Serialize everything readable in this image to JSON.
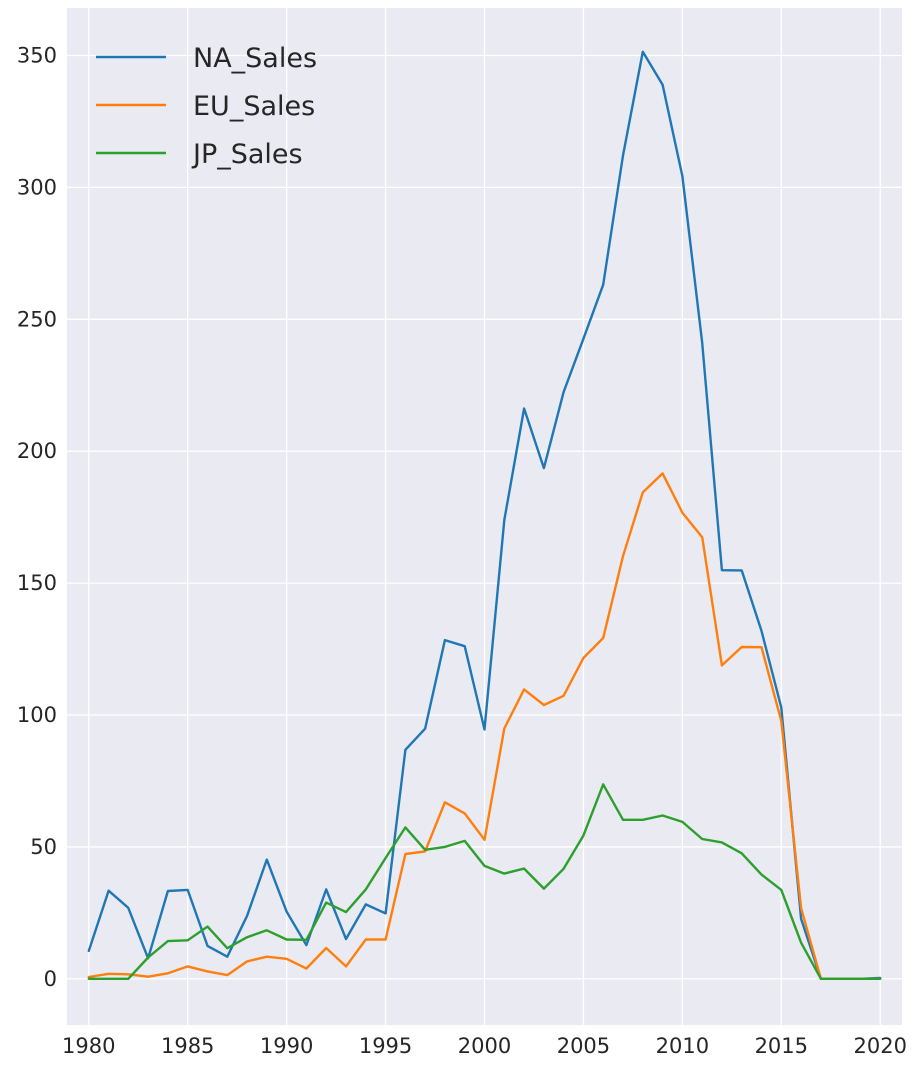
{
  "chart_data": {
    "type": "line",
    "title": "",
    "xlabel": "",
    "ylabel": "",
    "xlim": [
      1978.9,
      2021.1
    ],
    "ylim": [
      -17.5,
      368
    ],
    "xticks": [
      1980,
      1985,
      1990,
      1995,
      2000,
      2005,
      2010,
      2015,
      2020
    ],
    "yticks": [
      0,
      50,
      100,
      150,
      200,
      250,
      300,
      350
    ],
    "grid": true,
    "legend_position": "top-left",
    "x": [
      1980,
      1981,
      1982,
      1983,
      1984,
      1985,
      1986,
      1987,
      1988,
      1989,
      1990,
      1991,
      1992,
      1993,
      1994,
      1995,
      1996,
      1997,
      1998,
      1999,
      2000,
      2001,
      2002,
      2003,
      2004,
      2005,
      2006,
      2007,
      2008,
      2009,
      2010,
      2011,
      2012,
      2013,
      2014,
      2015,
      2016,
      2017,
      2018,
      2019,
      2020
    ],
    "series": [
      {
        "name": "NA_Sales",
        "color": "#1f77b4",
        "values": [
          10.6,
          33.4,
          26.9,
          7.8,
          33.3,
          33.7,
          12.5,
          8.4,
          23.9,
          45.2,
          25.5,
          12.8,
          33.9,
          15.1,
          28.2,
          24.8,
          86.8,
          94.8,
          128.4,
          126.1,
          94.5,
          173.9,
          216.2,
          193.6,
          222.4,
          242.6,
          263.1,
          312.1,
          351.4,
          338.9,
          304.2,
          241.1,
          154.9,
          154.8,
          131.9,
          102.8,
          22.7,
          0.0,
          0.0,
          0.0,
          0.3
        ]
      },
      {
        "name": "EU_Sales",
        "color": "#ff7f0e",
        "values": [
          0.7,
          1.9,
          1.7,
          0.8,
          2.1,
          4.7,
          2.8,
          1.4,
          6.6,
          8.4,
          7.6,
          3.9,
          11.7,
          4.7,
          14.9,
          14.9,
          47.3,
          48.3,
          66.9,
          62.7,
          52.7,
          94.9,
          109.7,
          103.8,
          107.3,
          121.6,
          129.2,
          160.2,
          184.4,
          191.6,
          176.7,
          167.4,
          118.8,
          125.8,
          125.7,
          97.7,
          26.8,
          0.0,
          0.0,
          0.0,
          0.0
        ]
      },
      {
        "name": "JP_Sales",
        "color": "#2ca02c",
        "values": [
          0.0,
          0.0,
          0.0,
          8.1,
          14.3,
          14.6,
          19.8,
          11.6,
          15.8,
          18.4,
          14.9,
          14.8,
          28.9,
          25.3,
          33.9,
          45.8,
          57.4,
          48.9,
          50.0,
          52.3,
          42.8,
          39.9,
          41.8,
          34.2,
          41.7,
          54.3,
          73.7,
          60.3,
          60.3,
          61.9,
          59.5,
          53.0,
          51.7,
          47.6,
          39.5,
          33.7,
          13.7,
          0.0,
          0.0,
          0.0,
          0.0
        ]
      }
    ]
  }
}
